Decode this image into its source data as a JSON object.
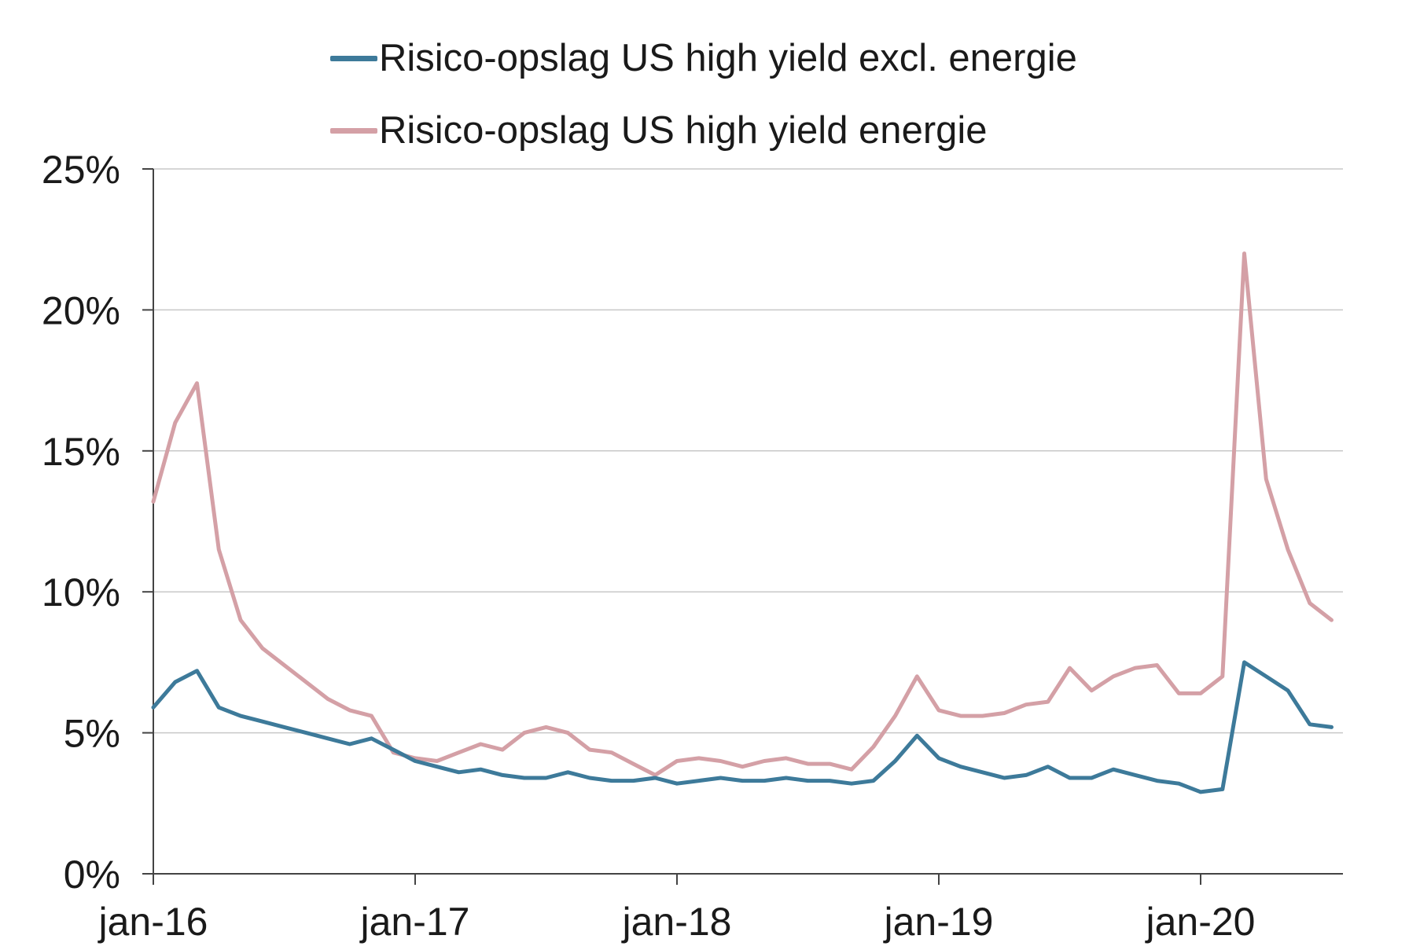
{
  "chart_data": {
    "type": "line",
    "title": "",
    "xlabel": "",
    "ylabel": "",
    "x_tick_labels": [
      "jan-16",
      "jan-17",
      "jan-18",
      "jan-19",
      "jan-20"
    ],
    "x_range": [
      "2016-01",
      "2020-07"
    ],
    "y_tick_labels": [
      "0%",
      "5%",
      "10%",
      "15%",
      "20%",
      "25%"
    ],
    "ylim": [
      0,
      25
    ],
    "grid": "horizontal",
    "legend_placement": "top-center",
    "x": [
      "2016-01",
      "2016-02",
      "2016-03",
      "2016-04",
      "2016-05",
      "2016-06",
      "2016-07",
      "2016-08",
      "2016-09",
      "2016-10",
      "2016-11",
      "2016-12",
      "2017-01",
      "2017-02",
      "2017-03",
      "2017-04",
      "2017-05",
      "2017-06",
      "2017-07",
      "2017-08",
      "2017-09",
      "2017-10",
      "2017-11",
      "2017-12",
      "2018-01",
      "2018-02",
      "2018-03",
      "2018-04",
      "2018-05",
      "2018-06",
      "2018-07",
      "2018-08",
      "2018-09",
      "2018-10",
      "2018-11",
      "2018-12",
      "2019-01",
      "2019-02",
      "2019-03",
      "2019-04",
      "2019-05",
      "2019-06",
      "2019-07",
      "2019-08",
      "2019-09",
      "2019-10",
      "2019-11",
      "2019-12",
      "2020-01",
      "2020-02",
      "2020-03",
      "2020-04",
      "2020-05",
      "2020-06",
      "2020-07"
    ],
    "series": [
      {
        "name": "Risico-opslag US high yield excl. energie",
        "color": "#3d7a9a",
        "values": [
          5.9,
          6.8,
          7.2,
          5.9,
          5.6,
          5.4,
          5.2,
          5.0,
          4.8,
          4.6,
          4.8,
          4.4,
          4.0,
          3.8,
          3.6,
          3.7,
          3.5,
          3.4,
          3.4,
          3.6,
          3.4,
          3.3,
          3.3,
          3.4,
          3.2,
          3.3,
          3.4,
          3.3,
          3.3,
          3.4,
          3.3,
          3.3,
          3.2,
          3.3,
          4.0,
          4.9,
          4.1,
          3.8,
          3.6,
          3.4,
          3.5,
          3.8,
          3.4,
          3.4,
          3.7,
          3.5,
          3.3,
          3.2,
          2.9,
          3.0,
          7.5,
          7.0,
          6.5,
          5.3,
          5.2
        ]
      },
      {
        "name": "Risico-opslag US high yield energie",
        "color": "#d4a0a6",
        "values": [
          13.2,
          16.0,
          17.4,
          11.5,
          9.0,
          8.0,
          7.4,
          6.8,
          6.2,
          5.8,
          5.6,
          4.3,
          4.1,
          4.0,
          4.3,
          4.6,
          4.4,
          5.0,
          5.2,
          5.0,
          4.4,
          4.3,
          3.9,
          3.5,
          4.0,
          4.1,
          4.0,
          3.8,
          4.0,
          4.1,
          3.9,
          3.9,
          3.7,
          4.5,
          5.6,
          7.0,
          5.8,
          5.6,
          5.6,
          5.7,
          6.0,
          6.1,
          7.3,
          6.5,
          7.0,
          7.3,
          7.4,
          6.4,
          6.4,
          7.0,
          22.0,
          14.0,
          11.5,
          9.6,
          9.0
        ]
      }
    ]
  }
}
